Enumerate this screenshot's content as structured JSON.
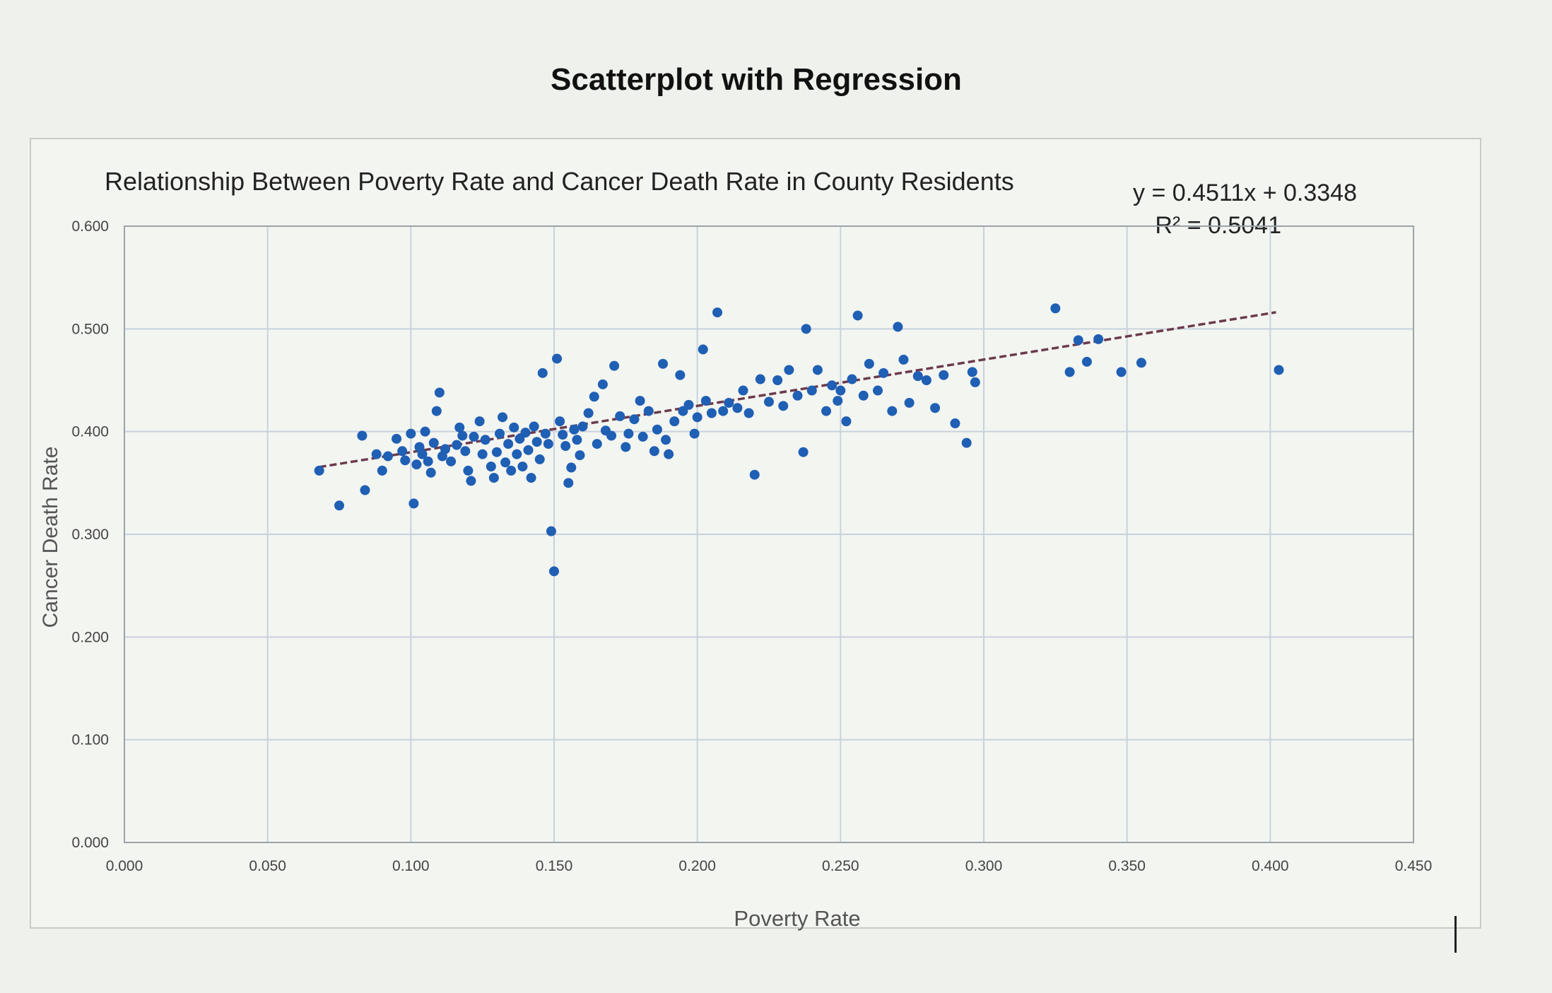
{
  "page_title": "Scatterplot with Regression",
  "chart_data": {
    "type": "scatter",
    "title": "Relationship Between Poverty Rate and Cancer Death Rate in County Residents",
    "xlabel": "Poverty Rate",
    "ylabel": "Cancer Death Rate",
    "xlim": [
      0,
      0.45
    ],
    "ylim": [
      0,
      0.6
    ],
    "x_ticks": [
      "0.000",
      "0.050",
      "0.100",
      "0.150",
      "0.200",
      "0.250",
      "0.300",
      "0.350",
      "0.400",
      "0.450"
    ],
    "y_ticks": [
      "0.000",
      "0.100",
      "0.200",
      "0.300",
      "0.400",
      "0.500",
      "0.600"
    ],
    "grid": true,
    "legend": "none",
    "trendline": {
      "equation": "y = 0.4511x + 0.3348",
      "r_squared": "R² = 0.5041",
      "slope": 0.4511,
      "intercept": 0.3348,
      "x_range": [
        0.068,
        0.402
      ]
    },
    "colors": {
      "marker": "#1f5fb4",
      "trendline": "#6b3a4c",
      "grid": "#c8d2dc"
    },
    "points": [
      [
        0.068,
        0.362
      ],
      [
        0.075,
        0.328
      ],
      [
        0.083,
        0.396
      ],
      [
        0.084,
        0.343
      ],
      [
        0.088,
        0.378
      ],
      [
        0.09,
        0.362
      ],
      [
        0.092,
        0.376
      ],
      [
        0.095,
        0.393
      ],
      [
        0.097,
        0.381
      ],
      [
        0.098,
        0.372
      ],
      [
        0.1,
        0.398
      ],
      [
        0.101,
        0.33
      ],
      [
        0.102,
        0.368
      ],
      [
        0.103,
        0.385
      ],
      [
        0.104,
        0.378
      ],
      [
        0.105,
        0.4
      ],
      [
        0.106,
        0.371
      ],
      [
        0.107,
        0.36
      ],
      [
        0.108,
        0.389
      ],
      [
        0.109,
        0.42
      ],
      [
        0.11,
        0.438
      ],
      [
        0.111,
        0.376
      ],
      [
        0.112,
        0.383
      ],
      [
        0.114,
        0.371
      ],
      [
        0.116,
        0.387
      ],
      [
        0.117,
        0.404
      ],
      [
        0.118,
        0.396
      ],
      [
        0.119,
        0.381
      ],
      [
        0.12,
        0.362
      ],
      [
        0.121,
        0.352
      ],
      [
        0.122,
        0.395
      ],
      [
        0.124,
        0.41
      ],
      [
        0.125,
        0.378
      ],
      [
        0.126,
        0.392
      ],
      [
        0.128,
        0.366
      ],
      [
        0.129,
        0.355
      ],
      [
        0.13,
        0.38
      ],
      [
        0.131,
        0.398
      ],
      [
        0.132,
        0.414
      ],
      [
        0.133,
        0.37
      ],
      [
        0.134,
        0.388
      ],
      [
        0.135,
        0.362
      ],
      [
        0.136,
        0.404
      ],
      [
        0.137,
        0.378
      ],
      [
        0.138,
        0.393
      ],
      [
        0.139,
        0.366
      ],
      [
        0.14,
        0.399
      ],
      [
        0.141,
        0.382
      ],
      [
        0.142,
        0.355
      ],
      [
        0.143,
        0.405
      ],
      [
        0.144,
        0.39
      ],
      [
        0.145,
        0.373
      ],
      [
        0.146,
        0.457
      ],
      [
        0.147,
        0.398
      ],
      [
        0.148,
        0.388
      ],
      [
        0.149,
        0.303
      ],
      [
        0.15,
        0.264
      ],
      [
        0.151,
        0.471
      ],
      [
        0.152,
        0.41
      ],
      [
        0.153,
        0.397
      ],
      [
        0.154,
        0.386
      ],
      [
        0.155,
        0.35
      ],
      [
        0.156,
        0.365
      ],
      [
        0.157,
        0.402
      ],
      [
        0.158,
        0.392
      ],
      [
        0.159,
        0.377
      ],
      [
        0.16,
        0.405
      ],
      [
        0.162,
        0.418
      ],
      [
        0.164,
        0.434
      ],
      [
        0.165,
        0.388
      ],
      [
        0.167,
        0.446
      ],
      [
        0.168,
        0.401
      ],
      [
        0.17,
        0.396
      ],
      [
        0.171,
        0.464
      ],
      [
        0.173,
        0.415
      ],
      [
        0.175,
        0.385
      ],
      [
        0.176,
        0.398
      ],
      [
        0.178,
        0.412
      ],
      [
        0.18,
        0.43
      ],
      [
        0.181,
        0.395
      ],
      [
        0.183,
        0.42
      ],
      [
        0.185,
        0.381
      ],
      [
        0.186,
        0.402
      ],
      [
        0.188,
        0.466
      ],
      [
        0.189,
        0.392
      ],
      [
        0.19,
        0.378
      ],
      [
        0.192,
        0.41
      ],
      [
        0.194,
        0.455
      ],
      [
        0.195,
        0.42
      ],
      [
        0.197,
        0.426
      ],
      [
        0.199,
        0.398
      ],
      [
        0.2,
        0.414
      ],
      [
        0.202,
        0.48
      ],
      [
        0.203,
        0.43
      ],
      [
        0.205,
        0.418
      ],
      [
        0.207,
        0.516
      ],
      [
        0.209,
        0.42
      ],
      [
        0.211,
        0.428
      ],
      [
        0.214,
        0.423
      ],
      [
        0.216,
        0.44
      ],
      [
        0.218,
        0.418
      ],
      [
        0.22,
        0.358
      ],
      [
        0.222,
        0.451
      ],
      [
        0.225,
        0.429
      ],
      [
        0.228,
        0.45
      ],
      [
        0.23,
        0.425
      ],
      [
        0.232,
        0.46
      ],
      [
        0.235,
        0.435
      ],
      [
        0.237,
        0.38
      ],
      [
        0.238,
        0.5
      ],
      [
        0.24,
        0.44
      ],
      [
        0.242,
        0.46
      ],
      [
        0.245,
        0.42
      ],
      [
        0.247,
        0.445
      ],
      [
        0.249,
        0.43
      ],
      [
        0.25,
        0.44
      ],
      [
        0.252,
        0.41
      ],
      [
        0.254,
        0.451
      ],
      [
        0.256,
        0.513
      ],
      [
        0.258,
        0.435
      ],
      [
        0.26,
        0.466
      ],
      [
        0.263,
        0.44
      ],
      [
        0.265,
        0.457
      ],
      [
        0.268,
        0.42
      ],
      [
        0.27,
        0.502
      ],
      [
        0.272,
        0.47
      ],
      [
        0.274,
        0.428
      ],
      [
        0.277,
        0.454
      ],
      [
        0.28,
        0.45
      ],
      [
        0.283,
        0.423
      ],
      [
        0.286,
        0.455
      ],
      [
        0.29,
        0.408
      ],
      [
        0.294,
        0.389
      ],
      [
        0.296,
        0.458
      ],
      [
        0.297,
        0.448
      ],
      [
        0.325,
        0.52
      ],
      [
        0.33,
        0.458
      ],
      [
        0.333,
        0.489
      ],
      [
        0.336,
        0.468
      ],
      [
        0.34,
        0.49
      ],
      [
        0.348,
        0.458
      ],
      [
        0.355,
        0.467
      ],
      [
        0.403,
        0.46
      ]
    ]
  }
}
